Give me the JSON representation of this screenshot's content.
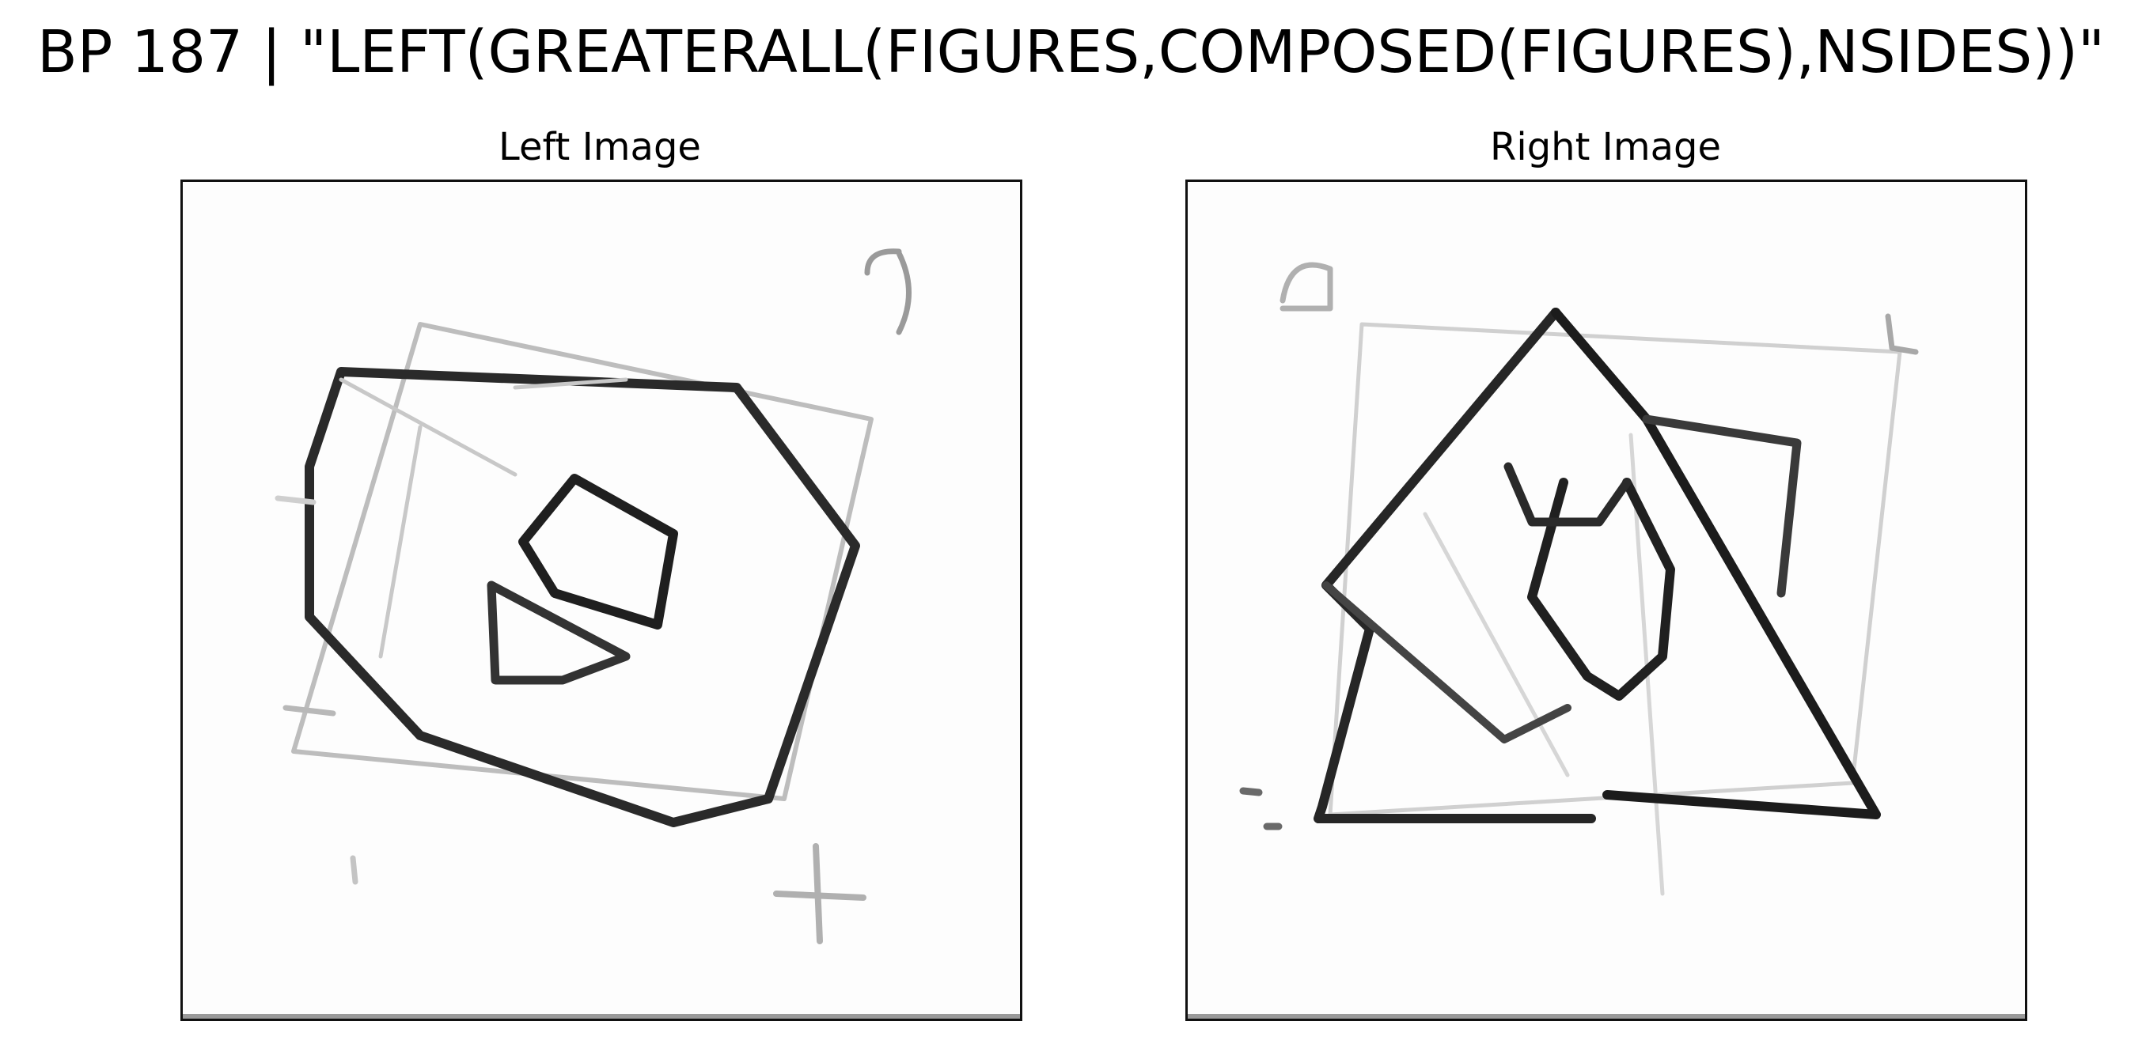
{
  "title": "BP 187 | \"LEFT(GREATERALL(FIGURES,COMPOSED(FIGURES),NSIDES))\"",
  "panels": {
    "left": {
      "title": "Left Image"
    },
    "right": {
      "title": "Right Image"
    }
  },
  "colors": {
    "background": "#ffffff",
    "stroke": "#1a1a1a",
    "frame": "#111111"
  }
}
